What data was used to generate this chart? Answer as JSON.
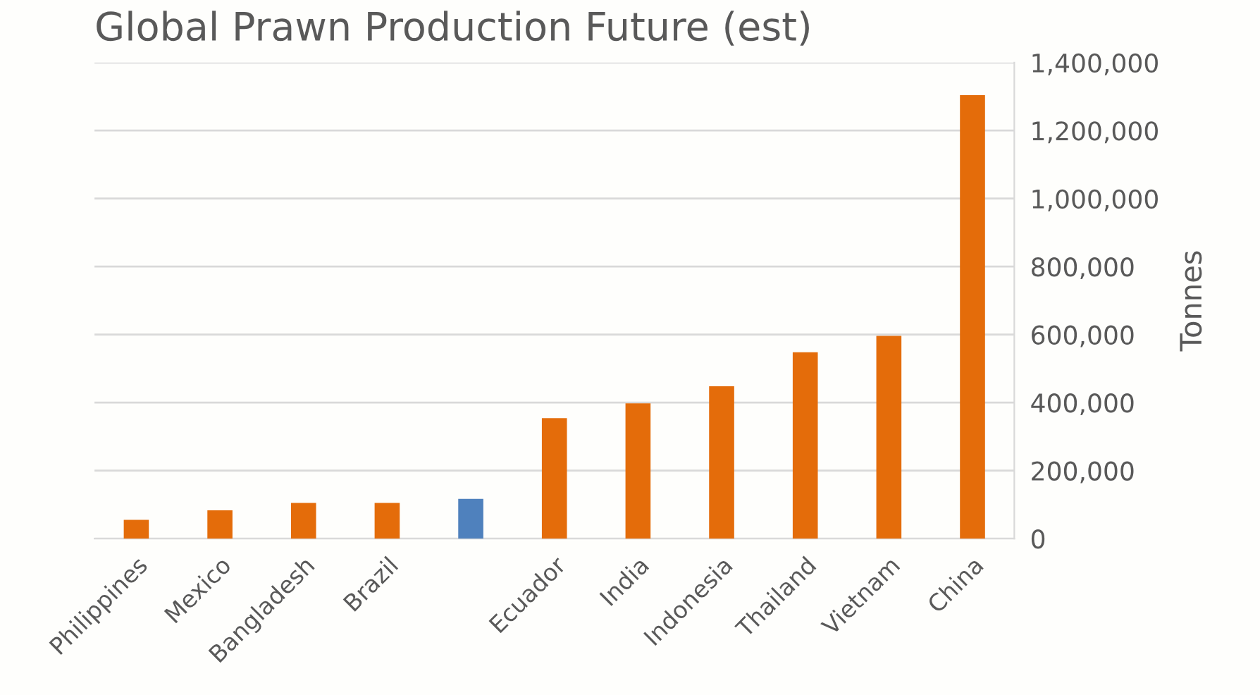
{
  "chart_data": {
    "type": "bar",
    "title": "Global Prawn Production Future (est)",
    "ylabel": "Tonnes",
    "categories": [
      "Philippines",
      "Mexico",
      "Bangladesh",
      "Brazil",
      null,
      "Ecuador",
      "India",
      "Indonesia",
      "Thailand",
      "Vietnam",
      "China"
    ],
    "values": [
      55000,
      83000,
      105000,
      105000,
      117000,
      354000,
      398000,
      448000,
      548000,
      596000,
      1304000
    ],
    "colors": [
      "#e46c0a",
      "#e46c0a",
      "#e46c0a",
      "#e46c0a",
      "#4f81bd",
      "#e46c0a",
      "#e46c0a",
      "#e46c0a",
      "#e46c0a",
      "#e46c0a",
      "#e46c0a"
    ],
    "ylim": [
      0,
      1400000
    ],
    "yticks": [
      {
        "value": 0,
        "label": "0"
      },
      {
        "value": 200000,
        "label": "200,000"
      },
      {
        "value": 400000,
        "label": "400,000"
      },
      {
        "value": 600000,
        "label": "600,000"
      },
      {
        "value": 800000,
        "label": "800,000"
      },
      {
        "value": 1000000,
        "label": "1,000,000"
      },
      {
        "value": 1200000,
        "label": "1,200,000"
      },
      {
        "value": 1400000,
        "label": "1,400,000"
      }
    ],
    "grid": "y"
  }
}
